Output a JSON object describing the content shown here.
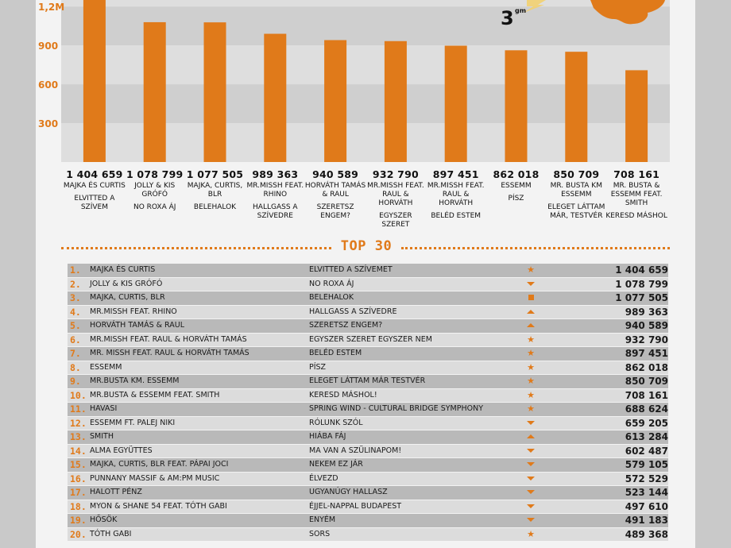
{
  "colors": {
    "accent": "#e07a1a",
    "band_light": "#dedede",
    "band_dark": "#cfcfcf"
  },
  "badge": {
    "big": "3",
    "sup": "gm"
  },
  "chart_data": {
    "type": "bar",
    "ylim": [
      0,
      1250
    ],
    "yticks": [
      {
        "value": 300,
        "label": "300"
      },
      {
        "value": 600,
        "label": "600"
      },
      {
        "value": 900,
        "label": "900"
      },
      {
        "value": 1200,
        "label": "1,2M"
      }
    ],
    "categories": [
      {
        "label": "1 404 659",
        "value": 1404.659,
        "artist": "Majka és Curtis",
        "song": "Elvitted a szívem"
      },
      {
        "label": "1 078 799",
        "value": 1078.799,
        "artist": "Jolly & Kis Grófó",
        "song": "No Roxa áj"
      },
      {
        "label": "1 077 505",
        "value": 1077.505,
        "artist": "Majka, Curtis, BLR",
        "song": "Belehalok"
      },
      {
        "label": "989 363",
        "value": 989.363,
        "artist": "Mr.Missh feat. Rhino",
        "song": "Hallgass a szívedre"
      },
      {
        "label": "940 589",
        "value": 940.589,
        "artist": "Horváth Tamás & Raul",
        "song": "Szeretsz engem?"
      },
      {
        "label": "932 790",
        "value": 932.79,
        "artist": "Mr.Missh feat. Raul & Horváth",
        "song": "Egyszer szeret"
      },
      {
        "label": "897 451",
        "value": 897.451,
        "artist": "Mr.Missh feat. Raul & Horváth",
        "song": "Beléd estem"
      },
      {
        "label": "862 018",
        "value": 862.018,
        "artist": "Essemm",
        "song": "Písz"
      },
      {
        "label": "850 709",
        "value": 850.709,
        "artist": "Mr. Busta km Essemm",
        "song": "Eleget láttam már, testvér"
      },
      {
        "label": "708 161",
        "value": 708.161,
        "artist": "Mr. Busta & Essemm feat. Smith",
        "song": "Keresd máshol"
      }
    ]
  },
  "top": {
    "title": "TOP 30",
    "rows": [
      {
        "rank": "1.",
        "artist": "Majka és Curtis",
        "song": "Elvitted a szívemet",
        "trend": "star",
        "count": "1 404 659"
      },
      {
        "rank": "2.",
        "artist": "Jolly & Kis Grófó",
        "song": "No Roxa áj",
        "trend": "down",
        "count": "1 078 799"
      },
      {
        "rank": "3.",
        "artist": "Majka, Curtis, BLR",
        "song": "Belehalok",
        "trend": "same",
        "count": "1 077 505"
      },
      {
        "rank": "4.",
        "artist": "Mr.Missh feat. Rhino",
        "song": "Hallgass a szívedre",
        "trend": "up",
        "count": "989 363"
      },
      {
        "rank": "5.",
        "artist": "Horváth Tamás & Raul",
        "song": "Szeretsz engem?",
        "trend": "up",
        "count": "940 589"
      },
      {
        "rank": "6.",
        "artist": "Mr.Missh feat. Raul & Horváth Tamás",
        "song": "Egyszer szeret egyszer nem",
        "trend": "star",
        "count": "932 790"
      },
      {
        "rank": "7.",
        "artist": "Mr. Missh feat. Raul & Horváth Tamás",
        "song": "Beléd estem",
        "trend": "star",
        "count": "897 451"
      },
      {
        "rank": "8.",
        "artist": "Essemm",
        "song": "Písz",
        "trend": "star",
        "count": "862 018"
      },
      {
        "rank": "9.",
        "artist": "Mr.Busta km. Essemm",
        "song": "Eleget láttam már testvér",
        "trend": "star",
        "count": "850 709"
      },
      {
        "rank": "10.",
        "artist": "Mr.Busta & Essemm feat. Smith",
        "song": "Keresd máshol!",
        "trend": "star",
        "count": "708 161"
      },
      {
        "rank": "11.",
        "artist": "Havasi",
        "song": "Spring wind - Cultural Bridge Symphony",
        "trend": "star",
        "count": "688 624"
      },
      {
        "rank": "12.",
        "artist": "Essemm ft. Palej Niki",
        "song": "Rólunk szól",
        "trend": "down",
        "count": "659 205"
      },
      {
        "rank": "13.",
        "artist": "Smith",
        "song": "Hiába fáj",
        "trend": "up",
        "count": "613 284"
      },
      {
        "rank": "14.",
        "artist": "Alma Együttes",
        "song": "Ma van a szülinapom!",
        "trend": "down",
        "count": "602 487"
      },
      {
        "rank": "15.",
        "artist": "Majka, Curtis, BLR feat. Pápai Joci",
        "song": "Nekem ez jár",
        "trend": "down",
        "count": "579 105"
      },
      {
        "rank": "16.",
        "artist": "Punnany Massif & Am:Pm Music",
        "song": "Élvezd",
        "trend": "down",
        "count": "572 529"
      },
      {
        "rank": "17.",
        "artist": "Halott Pénz",
        "song": "Ugyanúgy hallasz",
        "trend": "down",
        "count": "523 144"
      },
      {
        "rank": "18.",
        "artist": "Myon & Shane 54 feat. Tóth Gabi",
        "song": "Éjjel-nappal Budapest",
        "trend": "down",
        "count": "497 610"
      },
      {
        "rank": "19.",
        "artist": "Hősök",
        "song": "Enyém",
        "trend": "down",
        "count": "491 183"
      },
      {
        "rank": "20.",
        "artist": "Tóth Gabi",
        "song": "Sors",
        "trend": "star",
        "count": "489 368"
      }
    ]
  }
}
